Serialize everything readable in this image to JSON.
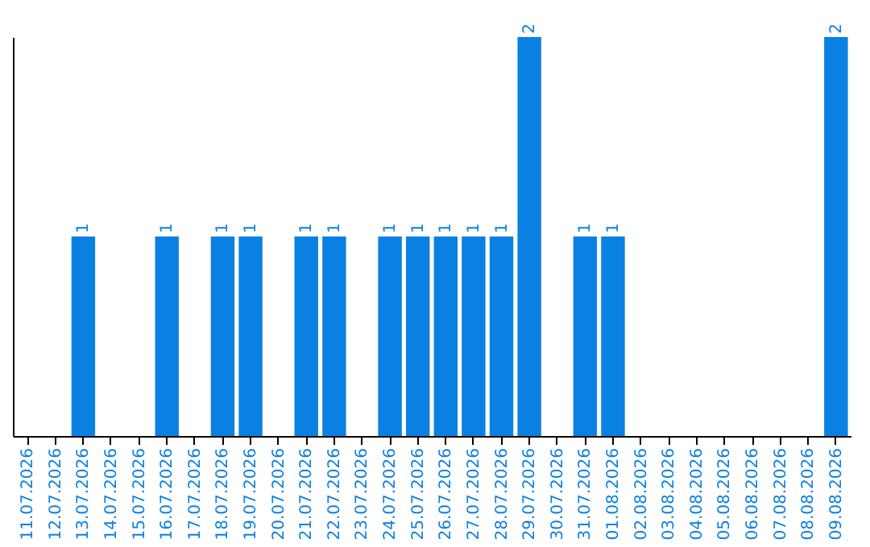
{
  "chart_data": {
    "type": "bar",
    "categories": [
      "11.07.2026",
      "12.07.2026",
      "13.07.2026",
      "14.07.2026",
      "15.07.2026",
      "16.07.2026",
      "17.07.2026",
      "18.07.2026",
      "19.07.2026",
      "20.07.2026",
      "21.07.2026",
      "22.07.2026",
      "23.07.2026",
      "24.07.2026",
      "25.07.2026",
      "26.07.2026",
      "27.07.2026",
      "28.07.2026",
      "29.07.2026",
      "30.07.2026",
      "31.07.2026",
      "01.08.2026",
      "02.08.2026",
      "03.08.2026",
      "04.08.2026",
      "05.08.2026",
      "06.08.2026",
      "07.08.2026",
      "08.08.2026",
      "09.08.2026"
    ],
    "values": [
      0,
      0,
      1,
      0,
      0,
      1,
      0,
      1,
      1,
      0,
      1,
      1,
      0,
      1,
      1,
      1,
      1,
      1,
      2,
      0,
      1,
      1,
      0,
      0,
      0,
      0,
      0,
      0,
      0,
      2
    ],
    "value_labels": [
      null,
      null,
      "1",
      null,
      null,
      "1",
      null,
      "1",
      "1",
      null,
      "1",
      "1",
      null,
      "1",
      "1",
      "1",
      "1",
      "1",
      "2",
      null,
      "1",
      "1",
      null,
      null,
      null,
      null,
      null,
      null,
      null,
      "2"
    ],
    "color": "#0a80e3",
    "grid": false,
    "tick_labels": "x"
  }
}
